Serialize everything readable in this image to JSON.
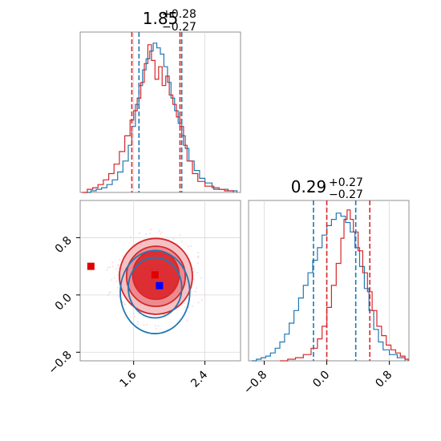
{
  "chart_data": {
    "type": "corner",
    "colors": {
      "series_a": "#1f77b4",
      "series_b": "#d62728",
      "marker_truth": "#0000ff",
      "marker_est": "#e00000"
    },
    "marginals": [
      {
        "id": "param1",
        "title": {
          "main": "1.85",
          "sup": "+0.28",
          "sub": "−0.27"
        },
        "xlim": [
          1.0,
          2.8
        ],
        "series_a_quantiles": [
          1.66,
          2.14
        ],
        "series_b_quantiles": [
          1.58,
          2.12
        ],
        "series_a": [
          [
            1.06,
            0
          ],
          [
            1.12,
            0.01
          ],
          [
            1.18,
            0.02
          ],
          [
            1.24,
            0.03
          ],
          [
            1.3,
            0.05
          ],
          [
            1.36,
            0.08
          ],
          [
            1.42,
            0.13
          ],
          [
            1.48,
            0.2
          ],
          [
            1.54,
            0.3
          ],
          [
            1.58,
            0.42
          ],
          [
            1.62,
            0.56
          ],
          [
            1.66,
            0.68
          ],
          [
            1.7,
            0.78
          ],
          [
            1.74,
            0.85
          ],
          [
            1.78,
            0.9
          ],
          [
            1.82,
            0.95
          ],
          [
            1.86,
            0.92
          ],
          [
            1.9,
            0.88
          ],
          [
            1.94,
            0.8
          ],
          [
            1.98,
            0.7
          ],
          [
            2.02,
            0.6
          ],
          [
            2.06,
            0.52
          ],
          [
            2.1,
            0.44
          ],
          [
            2.14,
            0.36
          ],
          [
            2.18,
            0.28
          ],
          [
            2.22,
            0.2
          ],
          [
            2.28,
            0.14
          ],
          [
            2.34,
            0.09
          ],
          [
            2.4,
            0.06
          ],
          [
            2.48,
            0.03
          ],
          [
            2.56,
            0.02
          ],
          [
            2.66,
            0.01
          ],
          [
            2.76,
            0
          ]
        ],
        "series_b": [
          [
            1.02,
            0
          ],
          [
            1.08,
            0.02
          ],
          [
            1.14,
            0.03
          ],
          [
            1.2,
            0.05
          ],
          [
            1.26,
            0.08
          ],
          [
            1.32,
            0.12
          ],
          [
            1.38,
            0.18
          ],
          [
            1.44,
            0.26
          ],
          [
            1.5,
            0.36
          ],
          [
            1.56,
            0.46
          ],
          [
            1.6,
            0.52
          ],
          [
            1.64,
            0.6
          ],
          [
            1.68,
            0.7
          ],
          [
            1.72,
            0.82
          ],
          [
            1.76,
            0.94
          ],
          [
            1.8,
            0.84
          ],
          [
            1.84,
            0.72
          ],
          [
            1.88,
            0.8
          ],
          [
            1.92,
            0.68
          ],
          [
            1.96,
            0.74
          ],
          [
            2.0,
            0.62
          ],
          [
            2.04,
            0.56
          ],
          [
            2.08,
            0.48
          ],
          [
            2.12,
            0.42
          ],
          [
            2.16,
            0.3
          ],
          [
            2.2,
            0.2
          ],
          [
            2.26,
            0.12
          ],
          [
            2.32,
            0.07
          ],
          [
            2.4,
            0.04
          ],
          [
            2.5,
            0.02
          ],
          [
            2.62,
            0.01
          ],
          [
            2.72,
            0
          ]
        ],
        "gridlines": [
          1.6,
          2.4
        ]
      },
      {
        "id": "param2",
        "title": {
          "main": "0.29",
          "sup": "+0.27",
          "sub": "−0.27"
        },
        "xlim": [
          -1.0,
          1.05
        ],
        "series_a_quantiles": [
          -0.17,
          0.37
        ],
        "series_b_quantiles": [
          0.0,
          0.55
        ],
        "series_a": [
          [
            -0.96,
            0
          ],
          [
            -0.9,
            0.01
          ],
          [
            -0.84,
            0.02
          ],
          [
            -0.78,
            0.03
          ],
          [
            -0.72,
            0.05
          ],
          [
            -0.66,
            0.08
          ],
          [
            -0.6,
            0.12
          ],
          [
            -0.54,
            0.17
          ],
          [
            -0.48,
            0.24
          ],
          [
            -0.42,
            0.32
          ],
          [
            -0.36,
            0.4
          ],
          [
            -0.3,
            0.48
          ],
          [
            -0.24,
            0.56
          ],
          [
            -0.18,
            0.64
          ],
          [
            -0.12,
            0.72
          ],
          [
            -0.06,
            0.8
          ],
          [
            0.0,
            0.86
          ],
          [
            0.06,
            0.9
          ],
          [
            0.12,
            0.94
          ],
          [
            0.18,
            0.92
          ],
          [
            0.24,
            0.88
          ],
          [
            0.3,
            0.82
          ],
          [
            0.36,
            0.72
          ],
          [
            0.42,
            0.6
          ],
          [
            0.48,
            0.46
          ],
          [
            0.54,
            0.32
          ],
          [
            0.6,
            0.2
          ],
          [
            0.66,
            0.12
          ],
          [
            0.72,
            0.07
          ],
          [
            0.8,
            0.04
          ],
          [
            0.9,
            0.02
          ],
          [
            1.0,
            0
          ]
        ],
        "series_b": [
          [
            -0.6,
            0
          ],
          [
            -0.5,
            0.01
          ],
          [
            -0.4,
            0.02
          ],
          [
            -0.3,
            0.04
          ],
          [
            -0.2,
            0.08
          ],
          [
            -0.12,
            0.14
          ],
          [
            -0.06,
            0.22
          ],
          [
            0.0,
            0.34
          ],
          [
            0.06,
            0.48
          ],
          [
            0.12,
            0.62
          ],
          [
            0.18,
            0.78
          ],
          [
            0.22,
            0.9
          ],
          [
            0.26,
            0.96
          ],
          [
            0.3,
            0.9
          ],
          [
            0.34,
            0.82
          ],
          [
            0.4,
            0.7
          ],
          [
            0.46,
            0.56
          ],
          [
            0.52,
            0.44
          ],
          [
            0.58,
            0.32
          ],
          [
            0.64,
            0.22
          ],
          [
            0.7,
            0.16
          ],
          [
            0.76,
            0.1
          ],
          [
            0.82,
            0.07
          ],
          [
            0.88,
            0.05
          ],
          [
            0.94,
            0.03
          ],
          [
            1.0,
            0.01
          ],
          [
            1.04,
            0
          ]
        ],
        "gridlines": [
          -0.8,
          0.0,
          0.8
        ]
      }
    ],
    "joint": {
      "xlim": [
        1.0,
        2.8
      ],
      "ylim": [
        -0.92,
        1.32
      ],
      "x_ticks": [
        1.6,
        2.4
      ],
      "x_tick_labels": [
        "1.6",
        "2.4"
      ],
      "y_ticks": [
        -0.8,
        0.0,
        0.8
      ],
      "y_tick_labels": [
        "−0.8",
        "0.0",
        "0.8"
      ],
      "series_b_regions": [
        {
          "level": "outer",
          "center": [
            1.85,
            0.26
          ],
          "radii": [
            0.41,
            0.53
          ]
        },
        {
          "level": "middle",
          "center": [
            1.85,
            0.26
          ],
          "radii": [
            0.33,
            0.42
          ]
        },
        {
          "level": "inner",
          "center": [
            1.85,
            0.28
          ],
          "radii": [
            0.26,
            0.34
          ]
        }
      ],
      "series_a_contours": [
        {
          "level": "outer",
          "center": [
            1.84,
            0.04
          ],
          "radii": [
            0.39,
            0.58
          ]
        },
        {
          "level": "inner",
          "center": [
            1.84,
            0.1
          ],
          "radii": [
            0.3,
            0.42
          ]
        }
      ],
      "markers": [
        {
          "name": "truth",
          "x": 1.89,
          "y": 0.13
        },
        {
          "name": "estimate",
          "x": 1.84,
          "y": 0.28
        },
        {
          "name": "outlier",
          "x": 1.12,
          "y": 0.4
        }
      ]
    },
    "bottom_right_axis": {
      "x_ticks": [
        -0.8,
        0.0,
        0.8
      ],
      "x_tick_labels": [
        "−0.8",
        "0.0",
        "0.8"
      ]
    }
  }
}
